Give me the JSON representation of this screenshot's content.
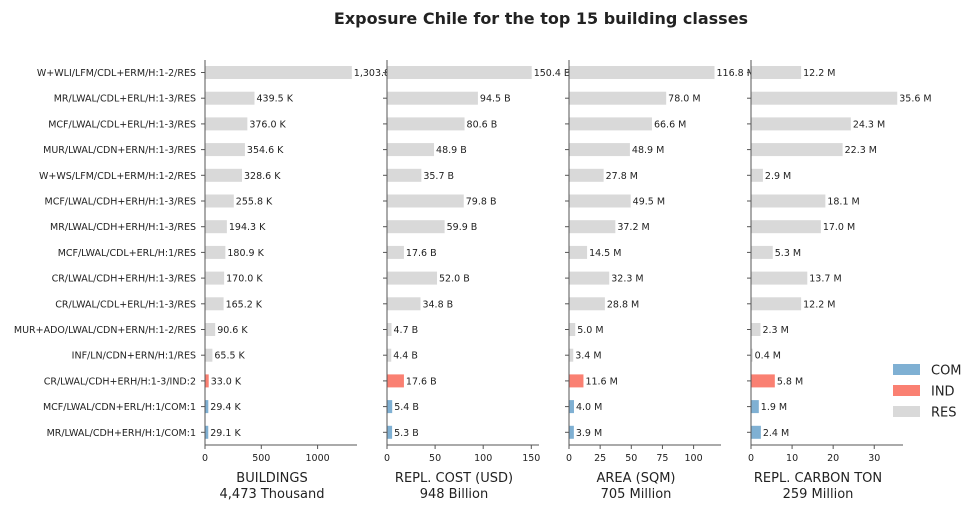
{
  "chart_data": {
    "type": "bar",
    "orientation": "horizontal",
    "title": "Exposure Chile for the top 15 building classes",
    "categories": [
      "W+WLI/LFM/CDL+ERM/H:1-2/RES",
      "MR/LWAL/CDL+ERL/H:1-3/RES",
      "MCF/LWAL/CDL+ERL/H:1-3/RES",
      "MUR/LWAL/CDN+ERN/H:1-3/RES",
      "W+WS/LFM/CDL+ERM/H:1-2/RES",
      "MCF/LWAL/CDH+ERH/H:1-3/RES",
      "MR/LWAL/CDH+ERH/H:1-3/RES",
      "MCF/LWAL/CDL+ERL/H:1/RES",
      "CR/LWAL/CDH+ERH/H:1-3/RES",
      "CR/LWAL/CDL+ERL/H:1-3/RES",
      "MUR+ADO/LWAL/CDN+ERN/H:1-2/RES",
      "INF/LN/CDN+ERN/H:1/RES",
      "CR/LWAL/CDH+ERH/H:1-3/IND:2",
      "MCF/LWAL/CDN+ERL/H:1/COM:1",
      "MR/LWAL/CDH+ERH/H:1/COM:1"
    ],
    "occupancy": [
      "RES",
      "RES",
      "RES",
      "RES",
      "RES",
      "RES",
      "RES",
      "RES",
      "RES",
      "RES",
      "RES",
      "RES",
      "IND",
      "COM",
      "COM"
    ],
    "colors": {
      "COM": "#7fb0d3",
      "IND": "#fa8072",
      "RES": "#d9d9d9"
    },
    "legend": {
      "position": "right",
      "entries": [
        "COM",
        "IND",
        "RES"
      ]
    },
    "panels": [
      {
        "xlabel": "BUILDINGS",
        "total": "4,473 Thousand",
        "xlim": [
          0,
          1350
        ],
        "ticks": [
          0,
          500,
          1000
        ],
        "tick_labels": [
          "0",
          "500",
          "1000"
        ],
        "values": [
          1303.8,
          439.5,
          376.0,
          354.6,
          328.6,
          255.8,
          194.3,
          180.9,
          170.0,
          165.2,
          90.6,
          65.5,
          33.0,
          29.4,
          29.1
        ],
        "labels": [
          "1,303.8",
          "439.5 K",
          "376.0 K",
          "354.6 K",
          "328.6 K",
          "255.8 K",
          "194.3 K",
          "180.9 K",
          "170.0 K",
          "165.2 K",
          "90.6 K",
          "65.5 K",
          "33.0 K",
          "29.4 K",
          "29.1 K"
        ]
      },
      {
        "xlabel": "REPL. COST (USD)",
        "total": "948 Billion",
        "xlim": [
          0,
          158
        ],
        "ticks": [
          0,
          50,
          100,
          150
        ],
        "tick_labels": [
          "0",
          "50",
          "100",
          "150"
        ],
        "values": [
          150.4,
          94.5,
          80.6,
          48.9,
          35.7,
          79.8,
          59.9,
          17.6,
          52.0,
          34.8,
          4.7,
          4.4,
          17.6,
          5.4,
          5.3
        ],
        "labels": [
          "150.4 B",
          "94.5 B",
          "80.6 B",
          "48.9 B",
          "35.7 B",
          "79.8 B",
          "59.9 B",
          "17.6 B",
          "52.0 B",
          "34.8 B",
          "4.7 B",
          "4.4 B",
          "17.6 B",
          "5.4 B",
          "5.3 B"
        ]
      },
      {
        "xlabel": "AREA (SQM)",
        "total": "705 Million",
        "xlim": [
          0,
          122
        ],
        "ticks": [
          0,
          25,
          50,
          75,
          100
        ],
        "tick_labels": [
          "0",
          "25",
          "50",
          "75",
          "100"
        ],
        "values": [
          116.8,
          78.0,
          66.6,
          48.9,
          27.8,
          49.5,
          37.2,
          14.5,
          32.3,
          28.8,
          5.0,
          3.4,
          11.6,
          4.0,
          3.9
        ],
        "labels": [
          "116.8 M",
          "78.0 M",
          "66.6 M",
          "48.9 M",
          "27.8 M",
          "49.5 M",
          "37.2 M",
          "14.5 M",
          "32.3 M",
          "28.8 M",
          "5.0 M",
          "3.4 M",
          "11.6 M",
          "4.0 M",
          "3.9 M"
        ]
      },
      {
        "xlabel": "REPL. CARBON TON",
        "total": "259 Million",
        "xlim": [
          0,
          37
        ],
        "ticks": [
          0,
          10,
          20,
          30
        ],
        "tick_labels": [
          "0",
          "10",
          "20",
          "30"
        ],
        "values": [
          12.2,
          35.6,
          24.3,
          22.3,
          2.9,
          18.1,
          17.0,
          5.3,
          13.7,
          12.2,
          2.3,
          0.4,
          5.8,
          1.9,
          2.4
        ],
        "labels": [
          "12.2 M",
          "35.6 M",
          "24.3 M",
          "22.3 M",
          "2.9 M",
          "18.1 M",
          "17.0 M",
          "5.3 M",
          "13.7 M",
          "12.2 M",
          "2.3 M",
          "0.4 M",
          "5.8 M",
          "1.9 M",
          "2.4 M"
        ]
      }
    ]
  }
}
